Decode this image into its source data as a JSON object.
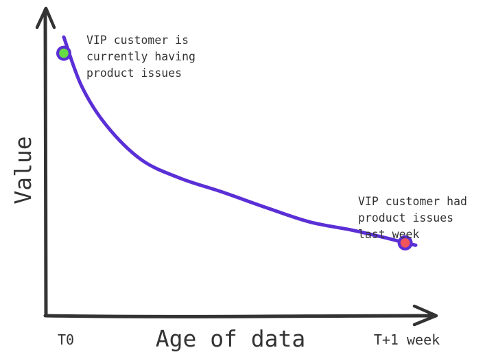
{
  "chart_data": {
    "type": "line",
    "title": "",
    "xlabel": "Age of data",
    "ylabel": "Value",
    "categories": [
      "T0",
      "T+1 week"
    ],
    "xlim": [
      0,
      1
    ],
    "ylim": [
      0,
      1
    ],
    "grid": false,
    "legend": "none",
    "series": [
      {
        "color": "#5b2fd6",
        "x": [
          0,
          0.05,
          0.12,
          0.22,
          0.33,
          0.45,
          0.58,
          0.7,
          0.82,
          0.92,
          0.97,
          1.0
        ],
        "y": [
          1.0,
          0.79,
          0.62,
          0.47,
          0.39,
          0.33,
          0.26,
          0.2,
          0.165,
          0.13,
          0.11,
          0.1
        ]
      }
    ],
    "highlights": [
      {
        "x": 0,
        "y": 0.93,
        "fill": "#66dd44",
        "stroke": "#5b2fd6",
        "annotation": [
          "VIP customer is",
          "currently having",
          "product issues"
        ]
      },
      {
        "x": 0.97,
        "y": 0.11,
        "fill": "#f2545b",
        "stroke": "#5b2fd6",
        "annotation": [
          "VIP customer had",
          "product issues",
          "last week"
        ]
      }
    ]
  }
}
